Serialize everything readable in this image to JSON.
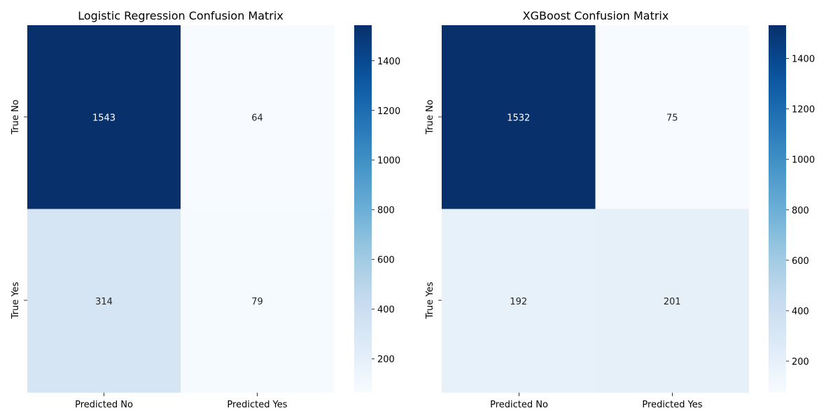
{
  "chart_data": [
    {
      "type": "heatmap",
      "title": "Logistic Regression Confusion Matrix",
      "x_categories": [
        "Predicted No",
        "Predicted Yes"
      ],
      "y_categories": [
        "True No",
        "True Yes"
      ],
      "values": [
        [
          1543,
          64
        ],
        [
          314,
          79
        ]
      ],
      "colorbar": {
        "min": 64,
        "max": 1543,
        "ticks": [
          200,
          400,
          600,
          800,
          1000,
          1200,
          1400
        ]
      },
      "colormap": "Blues",
      "grid": false
    },
    {
      "type": "heatmap",
      "title": "XGBoost Confusion Matrix",
      "x_categories": [
        "Predicted No",
        "Predicted Yes"
      ],
      "y_categories": [
        "True No",
        "True Yes"
      ],
      "values": [
        [
          1532,
          75
        ],
        [
          192,
          201
        ]
      ],
      "colorbar": {
        "min": 75,
        "max": 1532,
        "ticks": [
          200,
          400,
          600,
          800,
          1000,
          1200,
          1400
        ]
      },
      "colormap": "Blues",
      "grid": false
    }
  ]
}
